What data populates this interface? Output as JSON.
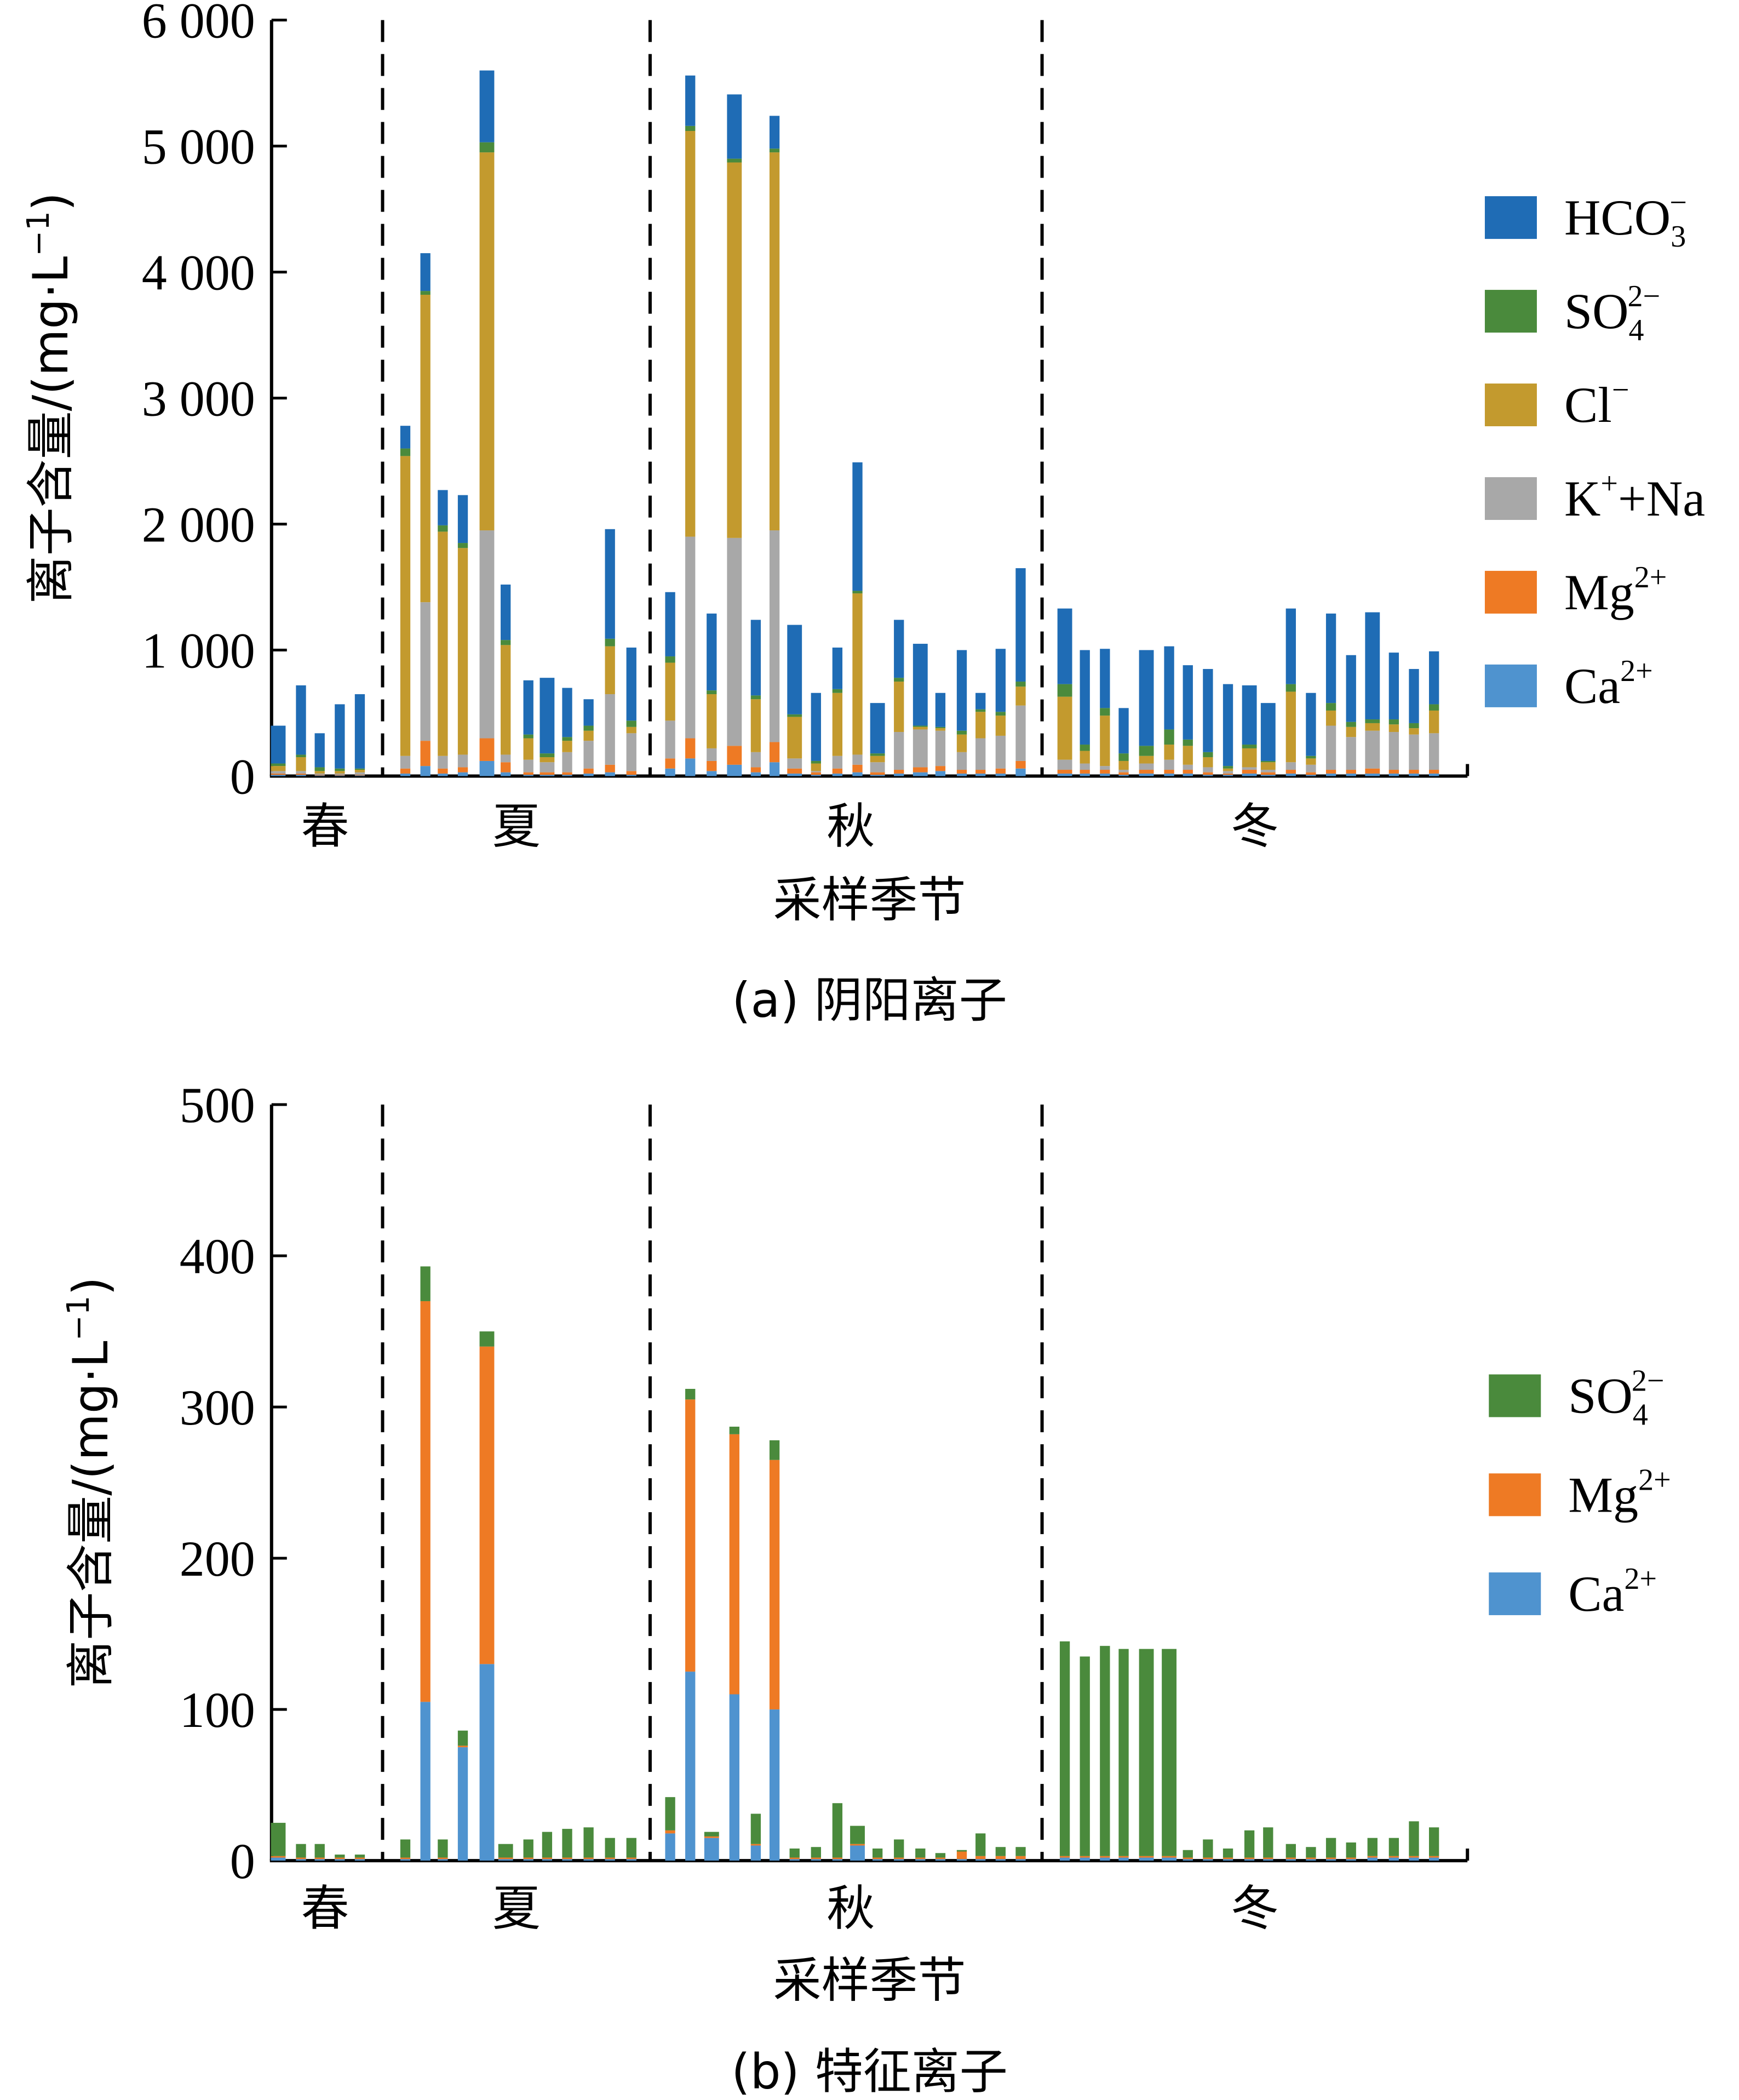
{
  "figure": {
    "captions": [
      "(a) 阴阳离子",
      "(b) 特征离子"
    ]
  },
  "chart_data": [
    {
      "id": "a",
      "type": "bar",
      "stacked": true,
      "title": "(a) 阴阳离子",
      "xlabel": "采样季节",
      "ylabel": "离子含量/(mg·L⁻¹)",
      "ylabel_parts": {
        "main": "离子含量/(mg·L",
        "sup": "−1",
        "close": ")"
      },
      "ylim": [
        0,
        6000
      ],
      "yticks": [
        0,
        1000,
        2000,
        3000,
        4000,
        5000,
        6000
      ],
      "ytick_labels": [
        "0",
        "1 000",
        "2 000",
        "3 000",
        "4 000",
        "5 000",
        "6 000"
      ],
      "grid": false,
      "legend_position": "right",
      "groups": [
        {
          "name": "春",
          "count": 5
        },
        {
          "name": "夏",
          "count": 12
        },
        {
          "name": "秋",
          "count": 18
        },
        {
          "name": "冬",
          "count": 19
        }
      ],
      "series_order_bottom_to_top": [
        "Ca2+",
        "Mg2+",
        "K++Na",
        "Cl-",
        "SO42-",
        "HCO3-"
      ],
      "legend": [
        {
          "key": "HCO3-",
          "base": "HCO",
          "sub": "3",
          "sup": "−",
          "color": "#1f6cb5"
        },
        {
          "key": "SO42-",
          "base": "SO",
          "sub": "4",
          "sup": "2−",
          "color": "#4a8a3c"
        },
        {
          "key": "Cl-",
          "base": "Cl",
          "sub": "",
          "sup": "−",
          "color": "#c39a2e"
        },
        {
          "key": "K++Na",
          "base": "K",
          "sub": "",
          "sup": "+",
          "tail": "+Na",
          "color": "#a8a8a8"
        },
        {
          "key": "Mg2+",
          "base": "Mg",
          "sub": "",
          "sup": "2+",
          "color": "#ee7a24"
        },
        {
          "key": "Ca2+",
          "base": "Ca",
          "sub": "",
          "sup": "2+",
          "color": "#4f93cf"
        }
      ],
      "series": [
        {
          "name": "Ca2+",
          "color": "#4f93cf",
          "values": [
            10,
            10,
            5,
            5,
            5,
            20,
            80,
            20,
            30,
            120,
            30,
            10,
            10,
            10,
            20,
            30,
            10,
            60,
            140,
            40,
            90,
            30,
            110,
            20,
            10,
            20,
            30,
            10,
            20,
            30,
            40,
            20,
            20,
            20,
            60,
            20,
            20,
            20,
            10,
            20,
            20,
            20,
            10,
            10,
            20,
            10,
            20,
            10,
            20,
            20,
            20,
            20,
            20,
            20
          ]
        },
        {
          "name": "Mg2+",
          "color": "#ee7a24",
          "values": [
            10,
            10,
            5,
            5,
            5,
            40,
            200,
            40,
            40,
            180,
            80,
            20,
            20,
            20,
            40,
            60,
            30,
            80,
            160,
            80,
            150,
            40,
            160,
            40,
            20,
            40,
            60,
            20,
            30,
            40,
            40,
            30,
            30,
            40,
            60,
            30,
            30,
            30,
            20,
            30,
            30,
            30,
            20,
            10,
            30,
            20,
            30,
            20,
            30,
            30,
            40,
            30,
            30,
            30
          ]
        },
        {
          "name": "K++Na",
          "color": "#a8a8a8",
          "values": [
            20,
            20,
            10,
            10,
            20,
            100,
            1100,
            100,
            100,
            1650,
            60,
            100,
            80,
            160,
            220,
            560,
            300,
            300,
            1600,
            100,
            1650,
            120,
            1680,
            80,
            10,
            100,
            80,
            80,
            300,
            300,
            280,
            140,
            250,
            260,
            440,
            80,
            50,
            30,
            20,
            50,
            80,
            40,
            40,
            20,
            20,
            20,
            60,
            60,
            350,
            260,
            300,
            300,
            280,
            290
          ]
        },
        {
          "name": "Cl-",
          "color": "#c39a2e",
          "values": [
            40,
            110,
            20,
            20,
            20,
            2380,
            2440,
            1780,
            1640,
            3000,
            870,
            170,
            40,
            90,
            80,
            380,
            50,
            460,
            3220,
            430,
            2980,
            420,
            3000,
            330,
            60,
            500,
            1280,
            50,
            400,
            20,
            20,
            140,
            210,
            160,
            150,
            500,
            100,
            400,
            70,
            60,
            120,
            150,
            80,
            20,
            150,
            60,
            560,
            50,
            120,
            80,
            60,
            60,
            50,
            180
          ]
        },
        {
          "name": "SO42-",
          "color": "#4a8a3c",
          "values": [
            20,
            20,
            30,
            20,
            10,
            60,
            30,
            50,
            40,
            80,
            40,
            30,
            30,
            30,
            40,
            60,
            50,
            50,
            40,
            30,
            30,
            30,
            30,
            20,
            20,
            30,
            20,
            20,
            30,
            10,
            10,
            30,
            20,
            30,
            40,
            100,
            50,
            60,
            60,
            80,
            120,
            50,
            40,
            20,
            30,
            10,
            60,
            20,
            60,
            40,
            30,
            40,
            40,
            50
          ]
        },
        {
          "name": "HCO3-",
          "color": "#1f6cb5",
          "values": [
            300,
            550,
            270,
            510,
            590,
            180,
            300,
            280,
            380,
            570,
            440,
            430,
            600,
            390,
            210,
            870,
            580,
            510,
            400,
            610,
            510,
            600,
            260,
            710,
            540,
            330,
            1020,
            400,
            460,
            650,
            270,
            640,
            130,
            500,
            900,
            600,
            750,
            470,
            360,
            760,
            660,
            590,
            660,
            650,
            470,
            460,
            600,
            500,
            710,
            530,
            850,
            530,
            430,
            420
          ]
        }
      ],
      "totals": [
        400,
        720,
        340,
        570,
        650,
        2780,
        4150,
        2270,
        2230,
        5600,
        1520,
        760,
        780,
        700,
        610,
        1960,
        1020,
        1460,
        5560,
        1290,
        5410,
        1240,
        5560,
        1200,
        660,
        1020,
        2490,
        580,
        1240,
        1050,
        660,
        980,
        660,
        1010,
        1650,
        1330,
        1000,
        1010,
        540,
        1000,
        930,
        880,
        850,
        710,
        720,
        580,
        1330,
        660,
        1290,
        980,
        1300,
        980,
        850,
        990
      ]
    },
    {
      "id": "b",
      "type": "bar",
      "stacked": true,
      "title": "(b) 特征离子",
      "xlabel": "采样季节",
      "ylabel": "离子含量/(mg·L⁻¹)",
      "ylabel_parts": {
        "main": "离子含量/(mg·L",
        "sup": "−1",
        "close": ")"
      },
      "ylim": [
        0,
        500
      ],
      "yticks": [
        0,
        100,
        200,
        300,
        400,
        500
      ],
      "ytick_labels": [
        "0",
        "100",
        "200",
        "300",
        "400",
        "500"
      ],
      "grid": false,
      "legend_position": "right",
      "groups": [
        {
          "name": "春",
          "count": 5
        },
        {
          "name": "夏",
          "count": 12
        },
        {
          "name": "秋",
          "count": 18
        },
        {
          "name": "冬",
          "count": 19
        }
      ],
      "series_order_bottom_to_top": [
        "Ca2+",
        "Mg2+",
        "SO42-"
      ],
      "legend": [
        {
          "key": "SO42-",
          "base": "SO",
          "sub": "4",
          "sup": "2−",
          "color": "#4a8a3c"
        },
        {
          "key": "Mg2+",
          "base": "Mg",
          "sub": "",
          "sup": "2+",
          "color": "#ee7a24"
        },
        {
          "key": "Ca2+",
          "base": "Ca",
          "sub": "",
          "sup": "2+",
          "color": "#4f93cf"
        }
      ],
      "series": [
        {
          "name": "Ca2+",
          "color": "#4f93cf",
          "values": [
            2,
            1,
            1,
            1,
            1,
            1,
            105,
            1,
            75,
            130,
            1,
            1,
            1,
            1,
            1,
            1,
            1,
            18,
            125,
            15,
            110,
            10,
            100,
            1,
            1,
            1,
            10,
            1,
            1,
            1,
            1,
            1,
            1,
            1,
            1,
            2,
            2,
            2,
            2,
            2,
            2,
            1,
            1,
            1,
            1,
            1,
            1,
            1,
            1,
            1,
            2,
            2,
            2,
            2
          ]
        },
        {
          "name": "Mg2+",
          "color": "#ee7a24",
          "values": [
            1,
            1,
            1,
            1,
            1,
            1,
            265,
            1,
            1,
            210,
            1,
            1,
            1,
            1,
            1,
            1,
            1,
            2,
            180,
            1,
            172,
            1,
            165,
            1,
            1,
            1,
            1,
            1,
            1,
            1,
            1,
            5,
            2,
            2,
            2,
            1,
            1,
            1,
            1,
            1,
            1,
            1,
            1,
            1,
            1,
            1,
            1,
            1,
            1,
            1,
            1,
            1,
            1,
            1
          ]
        },
        {
          "name": "SO42-",
          "color": "#4a8a3c",
          "values": [
            22,
            9,
            9,
            2,
            2,
            12,
            23,
            12,
            10,
            10,
            9,
            12,
            17,
            19,
            20,
            13,
            13,
            22,
            7,
            3,
            5,
            20,
            13,
            6,
            7,
            36,
            12,
            6,
            12,
            6,
            3,
            1,
            15,
            6,
            6,
            142,
            132,
            139,
            137,
            137,
            137,
            5,
            12,
            6,
            18,
            20,
            9,
            7,
            13,
            10,
            12,
            12,
            23,
            19
          ]
        }
      ],
      "totals": [
        25,
        11,
        11,
        4,
        4,
        14,
        393,
        14,
        86,
        350,
        11,
        14,
        19,
        21,
        22,
        15,
        15,
        42,
        312,
        19,
        287,
        31,
        278,
        8,
        9,
        38,
        23,
        8,
        14,
        8,
        5,
        7,
        18,
        9,
        9,
        145,
        135,
        142,
        140,
        140,
        140,
        7,
        14,
        8,
        20,
        22,
        11,
        9,
        15,
        12,
        15,
        15,
        26,
        22
      ]
    }
  ]
}
